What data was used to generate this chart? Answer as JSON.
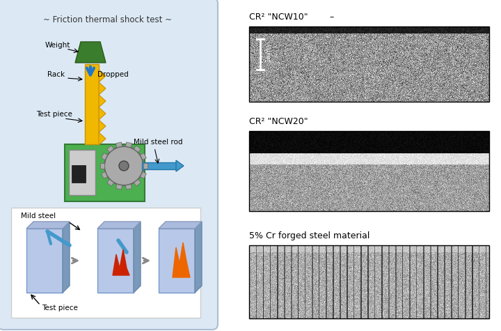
{
  "fig_width": 7.2,
  "fig_height": 4.75,
  "dpi": 100,
  "background_color": "#ffffff",
  "left_panel_bg": "#dce9f5",
  "title_friction": "~ Friction thermal shock test ~",
  "label_weight": "Weight",
  "label_dropped": "Dropped",
  "label_rack": "Rack",
  "label_test_piece": "Test piece",
  "label_mild_steel_rod": "Mild steel rod",
  "label_mild_steel": "Mild steel",
  "label_test_piece2": "Test piece",
  "cr2_ncw10_title": "CR² \"NCW10\"",
  "cr2_ncw20_title": "CR² \"NCW20\"",
  "cr_forged_title": "5% Cr forged steel material"
}
